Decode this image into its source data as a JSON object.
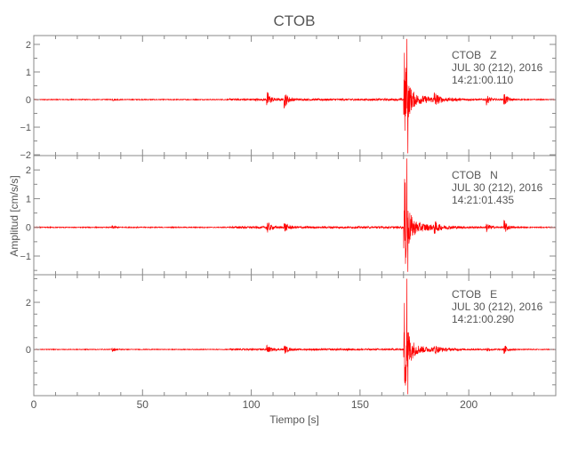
{
  "chart_data": {
    "type": "line",
    "title": "CTOB",
    "xlabel": "Tiempo [s]",
    "ylabel": "Amplitud [cm/s/s]",
    "xlim": [
      0,
      240
    ],
    "xticks": [
      0,
      50,
      100,
      150,
      200
    ],
    "trace_color": "#ff0000",
    "axis_color": "#888888",
    "grid": false,
    "panels": [
      {
        "station": "CTOB",
        "component": "Z",
        "label_line1": "CTOB   Z",
        "label_line2": "JUL 30 (212), 2016",
        "label_line3": "14:21:00.110",
        "ylim": [
          -2.03,
          2.32
        ],
        "yticks": [
          -2,
          -1,
          0,
          1,
          2
        ],
        "peak_time": 171.5,
        "peak_max": 2.2,
        "peak_min": -1.95,
        "events": [
          [
            36,
            0.05
          ],
          [
            107,
            0.35
          ],
          [
            115,
            0.35
          ],
          [
            184,
            0.3
          ],
          [
            208,
            0.2
          ],
          [
            216,
            0.3
          ]
        ]
      },
      {
        "station": "CTOB",
        "component": "N",
        "label_line1": "CTOB   N",
        "label_line2": "JUL 30 (212), 2016",
        "label_line3": "14:21:01.435",
        "ylim": [
          -1.65,
          2.5
        ],
        "yticks": [
          -1,
          0,
          1,
          2
        ],
        "peak_time": 171.5,
        "peak_max": 2.4,
        "peak_min": -1.55,
        "events": [
          [
            36,
            0.06
          ],
          [
            107,
            0.25
          ],
          [
            115,
            0.2
          ],
          [
            184,
            0.2
          ],
          [
            208,
            0.2
          ],
          [
            216,
            0.3
          ]
        ]
      },
      {
        "station": "CTOB",
        "component": "E",
        "label_line1": "CTOB   E",
        "label_line2": "JUL 30 (212), 2016",
        "label_line3": "14:21:00.290",
        "ylim": [
          -1.96,
          3.17
        ],
        "yticks": [
          0,
          2
        ],
        "yminor": [
          -1,
          1
        ],
        "peak_time": 171.5,
        "peak_max": 3.0,
        "peak_min": -1.9,
        "events": [
          [
            36,
            0.1
          ],
          [
            107,
            0.2
          ],
          [
            115,
            0.2
          ],
          [
            184,
            0.2
          ],
          [
            208,
            0.1
          ],
          [
            216,
            0.25
          ]
        ]
      }
    ]
  }
}
